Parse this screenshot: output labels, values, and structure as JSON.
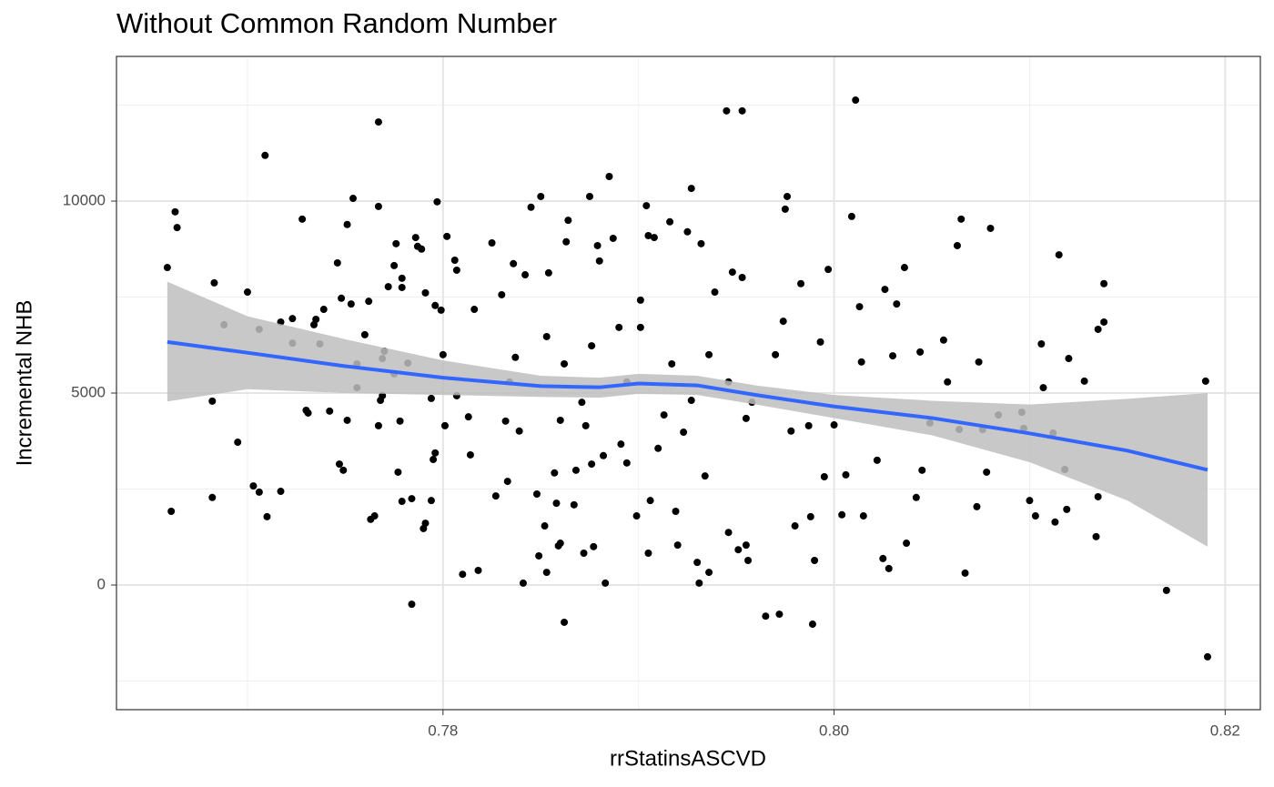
{
  "chart_data": {
    "type": "scatter",
    "title": "Without Common Random Number",
    "x_label": "rrStatinsASCVD",
    "y_label": "Incremental NHB",
    "xlim": [
      0.7633,
      0.8218
    ],
    "ylim": [
      -3246,
      13768
    ],
    "xticks": [
      0.78,
      {
        "value": 0.8,
        "label": "0.80"
      },
      0.82
    ],
    "yticks": [
      0,
      5000,
      10000
    ],
    "x_minor_ticks": [
      0.77,
      0.79,
      0.81
    ],
    "y_minor_ticks": [
      -2500,
      2500,
      7500,
      12500
    ],
    "grid": true,
    "points": {
      "color": "#000000",
      "x": [
        0.7659,
        0.7663,
        0.7664,
        0.7661,
        0.7682,
        0.7683,
        0.7682,
        0.7688,
        0.7695,
        0.77,
        0.7703,
        0.7706,
        0.7706,
        0.7709,
        0.771,
        0.7717,
        0.7717,
        0.7723,
        0.7723,
        0.7728,
        0.773,
        0.7731,
        0.7734,
        0.7735,
        0.7737,
        0.7739,
        0.7742,
        0.7746,
        0.7747,
        0.7749,
        0.7748,
        0.7751,
        0.7751,
        0.7754,
        0.7753,
        0.7756,
        0.7763,
        0.7765,
        0.7756,
        0.776,
        0.7762,
        0.7767,
        0.7767,
        0.7767,
        0.7768,
        0.7769,
        0.7769,
        0.777,
        0.7772,
        0.7775,
        0.7775,
        0.7776,
        0.7777,
        0.7778,
        0.7779,
        0.7779,
        0.7779,
        0.7782,
        0.7784,
        0.7784,
        0.7786,
        0.7787,
        0.7789,
        0.779,
        0.7791,
        0.7791,
        0.7794,
        0.7794,
        0.7795,
        0.7796,
        0.7796,
        0.7797,
        0.7799,
        0.78,
        0.7801,
        0.7802,
        0.7806,
        0.7807,
        0.7807,
        0.781,
        0.7813,
        0.7814,
        0.7816,
        0.7818,
        0.7825,
        0.7827,
        0.783,
        0.7832,
        0.7833,
        0.7836,
        0.7837,
        0.7839,
        0.7841,
        0.7842,
        0.7845,
        0.7848,
        0.7849,
        0.785,
        0.7852,
        0.7853,
        0.7854,
        0.7857,
        0.7858,
        0.7859,
        0.786,
        0.786,
        0.7862,
        0.7863,
        0.7864,
        0.7867,
        0.7868,
        0.7871,
        0.7872,
        0.7873,
        0.7875,
        0.7876,
        0.7877,
        0.7879,
        0.788,
        0.7882,
        0.7883,
        0.7885,
        0.7887,
        0.7891,
        0.7894,
        0.7899,
        0.7901,
        0.7904,
        0.7905,
        0.7905,
        0.7906,
        0.7908,
        0.791,
        0.7913,
        0.7916,
        0.7919,
        0.792,
        0.7923,
        0.7925,
        0.7927,
        0.793,
        0.7931,
        0.7932,
        0.7934,
        0.7936,
        0.7939,
        0.7945,
        0.7946,
        0.7948,
        0.7951,
        0.7953,
        0.7953,
        0.7955,
        0.7956,
        0.7958,
        0.7965,
        0.797,
        0.7972,
        0.7974,
        0.7975,
        0.7976,
        0.7978,
        0.798,
        0.7983,
        0.7987,
        0.7988,
        0.7989,
        0.799,
        0.7993,
        0.7995,
        0.7997,
        0.8,
        0.8004,
        0.8006,
        0.8009,
        0.8011,
        0.8013,
        0.8014,
        0.8015,
        0.8022,
        0.8025,
        0.8028,
        0.8026,
        0.803,
        0.8032,
        0.8036,
        0.8037,
        0.8042,
        0.8044,
        0.8045,
        0.8049,
        0.8056,
        0.8058,
        0.8063,
        0.8065,
        0.8067,
        0.8064,
        0.8074,
        0.8073,
        0.8076,
        0.8078,
        0.808,
        0.8084,
        0.8096,
        0.8097,
        0.81,
        0.8103,
        0.8106,
        0.8107,
        0.8112,
        0.8113,
        0.8115,
        0.8118,
        0.8119,
        0.812,
        0.8128,
        0.8134,
        0.8135,
        0.8135,
        0.8138,
        0.8138,
        0.817,
        0.819,
        0.8191,
        0.7876,
        0.7894,
        0.7901,
        0.7917,
        0.7927,
        0.7936,
        0.7946,
        0.7955,
        0.7853,
        0.7834,
        0.7862,
        0.789
      ],
      "y": [
        8270,
        9720,
        9310,
        1920,
        4790,
        7870,
        2280,
        6780,
        3720,
        7630,
        2580,
        2420,
        6660,
        11190,
        1780,
        2440,
        6850,
        6940,
        6300,
        9530,
        4550,
        4480,
        6780,
        6920,
        6280,
        7180,
        4530,
        8390,
        3150,
        2990,
        7470,
        9390,
        4290,
        10070,
        7320,
        5140,
        1710,
        1800,
        5760,
        6520,
        7390,
        12060,
        9860,
        4150,
        4810,
        5900,
        4930,
        6090,
        7770,
        5500,
        8320,
        8890,
        2940,
        4270,
        7750,
        7990,
        2180,
        5780,
        -500,
        2250,
        9050,
        8820,
        8750,
        1470,
        1610,
        7610,
        2200,
        4860,
        3270,
        3440,
        7280,
        9980,
        7160,
        6000,
        4150,
        9080,
        8460,
        8200,
        4930,
        280,
        4380,
        3390,
        7180,
        380,
        8910,
        2320,
        7560,
        4270,
        2700,
        8370,
        5930,
        4010,
        50,
        8080,
        9840,
        2370,
        760,
        10120,
        1540,
        330,
        8130,
        2920,
        2130,
        1020,
        4290,
        1090,
        -970,
        8940,
        9500,
        2090,
        2990,
        4760,
        830,
        4150,
        10120,
        3150,
        1000,
        8840,
        8440,
        3370,
        50,
        10640,
        9030,
        3670,
        3180,
        1800,
        7420,
        9880,
        830,
        9100,
        2200,
        9050,
        3560,
        4430,
        9460,
        1920,
        1040,
        3980,
        9200,
        10330,
        590,
        50,
        8890,
        2840,
        330,
        7630,
        12350,
        1370,
        8150,
        920,
        12350,
        8010,
        1040,
        640,
        4760,
        -810,
        6000,
        -760,
        6870,
        9790,
        10120,
        4010,
        1540,
        7850,
        4150,
        1780,
        -1020,
        640,
        6330,
        2820,
        8220,
        4170,
        1830,
        2870,
        9600,
        12630,
        7250,
        5810,
        1800,
        3250,
        690,
        430,
        7700,
        5970,
        7320,
        8270,
        1090,
        2280,
        6070,
        2990,
        4220,
        6380,
        5290,
        8840,
        9530,
        310,
        4050,
        5810,
        2040,
        4050,
        2940,
        9290,
        4430,
        4500,
        4080,
        2200,
        1800,
        6280,
        5140,
        3960,
        1640,
        8600,
        3010,
        1970,
        5900,
        5310,
        1260,
        6660,
        2300,
        6850,
        7850,
        -140,
        5310,
        -1870,
        6230,
        5290,
        6710,
        5760,
        4810,
        6000,
        5290,
        4340,
        6470,
        5290,
        5760,
        6710
      ]
    },
    "smooth": {
      "color": "#3366ff",
      "band_color": "#bebebe",
      "x": [
        0.7659,
        0.77,
        0.775,
        0.78,
        0.785,
        0.788,
        0.79,
        0.793,
        0.796,
        0.8,
        0.805,
        0.81,
        0.815,
        0.8191
      ],
      "y": [
        6330,
        6050,
        5700,
        5400,
        5180,
        5150,
        5250,
        5200,
        4950,
        4650,
        4350,
        3950,
        3500,
        3000
      ],
      "lower": [
        4780,
        5100,
        5000,
        4950,
        4900,
        4880,
        4980,
        4950,
        4700,
        4350,
        3900,
        3200,
        2200,
        1000
      ],
      "upper": [
        7900,
        7000,
        6400,
        5850,
        5450,
        5400,
        5500,
        5450,
        5200,
        4950,
        4800,
        4700,
        4850,
        5000
      ]
    }
  }
}
